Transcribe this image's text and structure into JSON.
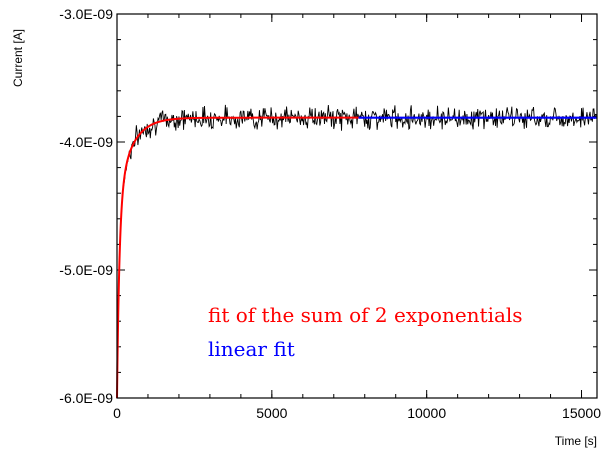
{
  "chart_data": {
    "type": "line",
    "title": "",
    "xlabel": "Time [s]",
    "ylabel": "Current [A]",
    "xlim": [
      0,
      15500
    ],
    "ylim": [
      -6e-09,
      -3e-09
    ],
    "x_ticks": [
      0,
      5000,
      10000,
      15000
    ],
    "x_tick_labels": [
      "0",
      "5000",
      "10000",
      "15000"
    ],
    "y_ticks": [
      -3e-09,
      -4e-09,
      -5e-09,
      -6e-09
    ],
    "y_tick_labels": [
      "-3.0E-09",
      "-4.0E-09",
      "-5.0E-09",
      "-6.0E-09"
    ],
    "grid": false,
    "series": [
      {
        "kind": "measured-noisy",
        "color": "#000000",
        "x_range": [
          0,
          15500
        ],
        "start_value": -6e-09,
        "plateau_value": -3.82e-09,
        "noise_amplitude": 7e-11,
        "samples": 620
      },
      {
        "kind": "double-exponential-fit",
        "color": "#ff0000",
        "x_range": [
          0,
          7800
        ],
        "start_value": -6e-09,
        "plateau_value": -3.81e-09,
        "tau_fast": 80,
        "tau_slow": 450,
        "weight_fast": 0.7
      },
      {
        "kind": "linear-fit",
        "color": "#0000ff",
        "x_range": [
          7800,
          15500
        ],
        "slope": 0,
        "value": -3.81e-09
      }
    ],
    "annotations": [
      {
        "text": "fit of the sum of 2 exponentials",
        "color": "#ff0000"
      },
      {
        "text": "linear fit",
        "color": "#0000ff"
      }
    ]
  }
}
